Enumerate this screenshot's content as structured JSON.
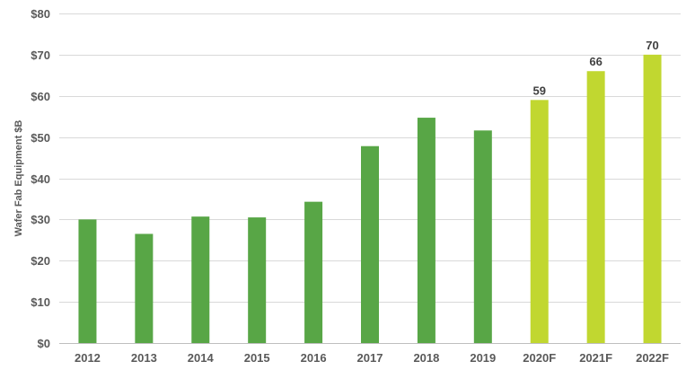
{
  "chart_data": {
    "type": "bar",
    "title": "",
    "xlabel": "",
    "ylabel": "Wafer Fab Equipment $B",
    "categories": [
      "2012",
      "2013",
      "2014",
      "2015",
      "2016",
      "2017",
      "2018",
      "2019",
      "2020F",
      "2021F",
      "2022F"
    ],
    "values": [
      30,
      26.5,
      30.7,
      30.5,
      34.3,
      47.8,
      54.7,
      51.6,
      59,
      66,
      70
    ],
    "forecast": [
      false,
      false,
      false,
      false,
      false,
      false,
      false,
      false,
      true,
      true,
      true
    ],
    "data_labels": [
      "",
      "",
      "",
      "",
      "",
      "",
      "",
      "",
      "59",
      "66",
      "70"
    ],
    "ylim": [
      0,
      80
    ],
    "yticks": [
      0,
      10,
      20,
      30,
      40,
      50,
      60,
      70,
      80
    ],
    "ytick_labels": [
      "$0",
      "$10",
      "$20",
      "$30",
      "$40",
      "$50",
      "$60",
      "$70",
      "$80"
    ],
    "grid": true,
    "colors": {
      "actual": "#58a646",
      "forecast": "#c1d730",
      "grid": "#d9d9d9"
    }
  }
}
